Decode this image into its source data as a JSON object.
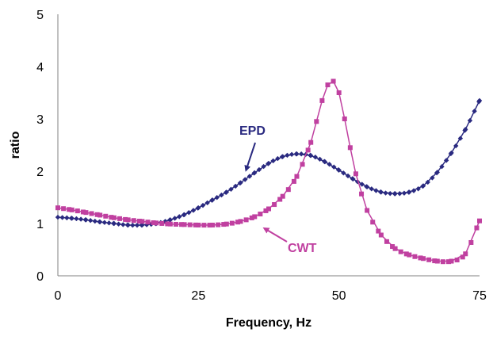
{
  "chart_data": {
    "type": "line",
    "title": "",
    "xlabel": "Frequency, Hz",
    "ylabel": "ratio",
    "xlim": [
      0,
      75
    ],
    "ylim": [
      0,
      5
    ],
    "xticks": [
      "0",
      "25",
      "50",
      "75"
    ],
    "yticks": [
      "0",
      "1",
      "2",
      "3",
      "4",
      "5"
    ],
    "grid": false,
    "legend": "none",
    "series": [
      {
        "name": "EPD",
        "color": "#2a2a80",
        "marker": "diamond",
        "x": [
          0,
          2.5,
          5,
          7.5,
          10,
          12.5,
          15,
          17.5,
          20,
          22.5,
          25,
          27.5,
          30,
          32.5,
          35,
          37.5,
          40,
          42.5,
          45,
          47.5,
          50,
          52.5,
          55,
          57.5,
          60,
          62.5,
          65,
          67.5,
          70,
          72.5,
          75
        ],
        "y": [
          1.12,
          1.1,
          1.07,
          1.03,
          1.0,
          0.97,
          0.97,
          1.0,
          1.07,
          1.17,
          1.3,
          1.45,
          1.6,
          1.78,
          1.97,
          2.15,
          2.28,
          2.33,
          2.3,
          2.18,
          2.02,
          1.85,
          1.7,
          1.6,
          1.57,
          1.6,
          1.72,
          1.98,
          2.35,
          2.8,
          3.35
        ]
      },
      {
        "name": "CWT",
        "color": "#c040a0",
        "marker": "square",
        "x": [
          0,
          2.5,
          5,
          7.5,
          10,
          12.5,
          15,
          17.5,
          20,
          22.5,
          25,
          27.5,
          30,
          32.5,
          35,
          37.5,
          40,
          42.5,
          45,
          46,
          47,
          48,
          49,
          50,
          51,
          52,
          53,
          55,
          57.5,
          60,
          62.5,
          65,
          67.5,
          70,
          72.5,
          75
        ],
        "y": [
          1.3,
          1.26,
          1.21,
          1.16,
          1.11,
          1.07,
          1.04,
          1.01,
          0.99,
          0.98,
          0.97,
          0.97,
          0.99,
          1.04,
          1.13,
          1.28,
          1.52,
          1.9,
          2.55,
          2.95,
          3.35,
          3.65,
          3.72,
          3.5,
          3.0,
          2.45,
          1.95,
          1.25,
          0.78,
          0.52,
          0.4,
          0.33,
          0.28,
          0.28,
          0.42,
          1.05
        ]
      }
    ],
    "annotations": [
      {
        "text": "EPD",
        "color": "#2a2a80"
      },
      {
        "text": "CWT",
        "color": "#c040a0"
      }
    ]
  }
}
